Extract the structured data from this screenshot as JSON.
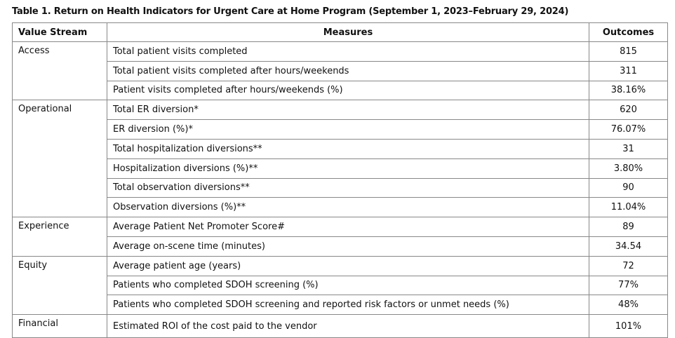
{
  "title": "Table 1.  Return on Health Indicators for Urgent Care at Home Program (September 1, 2023–February 29, 2024)",
  "table": {
    "header": [
      "Value Stream",
      "Measures",
      "Outcomes"
    ],
    "groups": [
      {
        "name": "Access",
        "rows": [
          [
            "Total patient visits completed",
            "815"
          ],
          [
            "Total patient visits completed after hours/weekends",
            "311"
          ],
          [
            "Patient visits completed after hours/weekends (%)",
            "38.16%"
          ]
        ]
      },
      {
        "name": "Operational",
        "rows": [
          [
            "Total ER diversion*",
            "620"
          ],
          [
            "ER diversion (%)*",
            "76.07%"
          ],
          [
            "Total hospitalization diversions**",
            "31"
          ],
          [
            "Hospitalization diversions (%)**",
            "3.80%"
          ],
          [
            "Total observation diversions**",
            "90"
          ],
          [
            "Observation diversions (%)**",
            "11.04%"
          ]
        ]
      },
      {
        "name": "Experience",
        "rows": [
          [
            "Average Patient Net Promoter Score#",
            "89"
          ],
          [
            "Average on-scene time (minutes)",
            "34.54"
          ]
        ]
      },
      {
        "name": "Equity",
        "rows": [
          [
            "Average patient age (years)",
            "72"
          ],
          [
            "Patients who completed SDOH screening (%)",
            "77%"
          ],
          [
            "Patients who completed SDOH screening and reported risk factors or unmet needs (%)",
            "48%"
          ]
        ]
      },
      {
        "name": "Financial",
        "rows": [
          [
            "Estimated ROI of the cost paid to the vendor",
            "101%"
          ]
        ]
      }
    ]
  }
}
